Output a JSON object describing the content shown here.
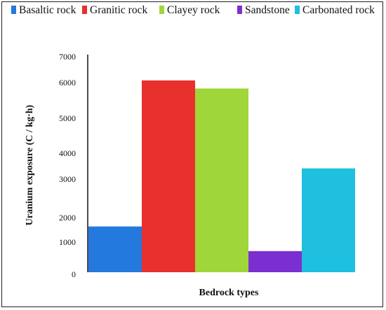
{
  "chart_data": {
    "type": "bar",
    "title": "",
    "xlabel": "Bedrock types",
    "ylabel": "Uranium exposure (C / kg·h)",
    "categories": [
      "Basaltic rock",
      "Granitic rock",
      "Clayey rock",
      "Sandstone",
      "Carbonated rock"
    ],
    "values": [
      1300,
      5450,
      5220,
      600,
      2950
    ],
    "colors": [
      "#2479DF",
      "#E8302C",
      "#9FD63A",
      "#7B2FD0",
      "#1FBFE0"
    ],
    "legend": {
      "placement": "top",
      "entries": [
        "Basaltic rock",
        "Granitic rock",
        "Clayey rock",
        "Sandstone",
        "Carbonated rock"
      ]
    },
    "ytick_labels": [
      "0",
      "1000",
      "2000",
      "3000",
      "4000",
      "5000",
      "6000",
      "7000"
    ],
    "ylim": [
      0,
      6900
    ],
    "grid": false
  }
}
